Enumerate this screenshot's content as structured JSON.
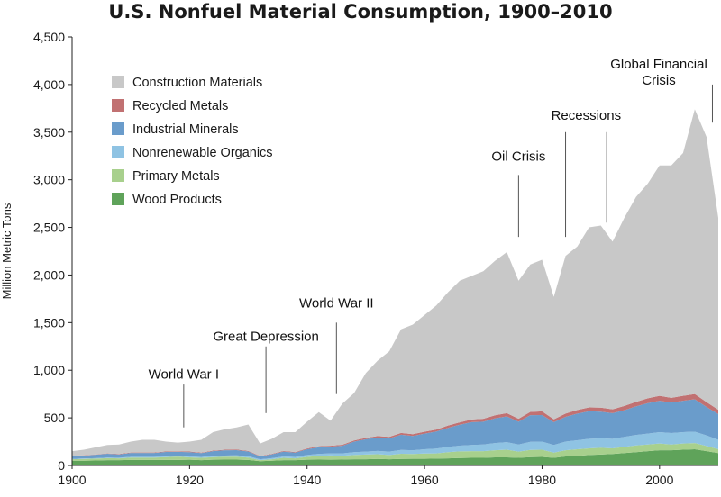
{
  "chart_data": {
    "type": "area",
    "stacked": true,
    "title": "U.S. Nonfuel Material Consumption, 1900–2010",
    "xlabel": "",
    "ylabel": "Million Metric Tons",
    "xlim": [
      1900,
      2010
    ],
    "ylim": [
      0,
      4500
    ],
    "x_ticks": [
      1900,
      1920,
      1940,
      1960,
      1980,
      2000
    ],
    "y_ticks": [
      0,
      500,
      1000,
      1500,
      2000,
      2500,
      3000,
      3500,
      4000,
      4500
    ],
    "y_tick_labels": [
      "0",
      "500",
      "1,000",
      "1,500",
      "2,000",
      "2,500",
      "3,000",
      "3,500",
      "4,000",
      "4,500"
    ],
    "grid": false,
    "legend_position": "top-left",
    "x": [
      1900,
      1902,
      1904,
      1906,
      1908,
      1910,
      1912,
      1914,
      1916,
      1918,
      1920,
      1922,
      1924,
      1926,
      1928,
      1930,
      1932,
      1934,
      1936,
      1938,
      1940,
      1942,
      1944,
      1946,
      1948,
      1950,
      1952,
      1954,
      1956,
      1958,
      1960,
      1962,
      1964,
      1966,
      1968,
      1970,
      1972,
      1974,
      1976,
      1978,
      1980,
      1982,
      1984,
      1986,
      1988,
      1990,
      1992,
      1994,
      1996,
      1998,
      2000,
      2002,
      2004,
      2006,
      2008,
      2010
    ],
    "series": [
      {
        "name": "Wood Products",
        "color": "#5fa35a",
        "values": [
          50,
          50,
          52,
          55,
          55,
          58,
          58,
          58,
          58,
          58,
          60,
          55,
          60,
          62,
          62,
          58,
          45,
          50,
          55,
          55,
          60,
          62,
          60,
          62,
          65,
          65,
          68,
          65,
          68,
          70,
          70,
          72,
          75,
          78,
          80,
          80,
          85,
          85,
          80,
          88,
          90,
          80,
          95,
          100,
          110,
          115,
          120,
          130,
          140,
          150,
          160,
          160,
          165,
          170,
          150,
          130
        ]
      },
      {
        "name": "Primary Metals",
        "color": "#a8d08d",
        "values": [
          15,
          18,
          20,
          22,
          20,
          25,
          25,
          25,
          30,
          35,
          25,
          25,
          28,
          30,
          30,
          25,
          10,
          15,
          25,
          20,
          30,
          40,
          45,
          40,
          45,
          50,
          50,
          45,
          55,
          50,
          55,
          55,
          65,
          70,
          70,
          70,
          75,
          80,
          65,
          75,
          75,
          55,
          65,
          70,
          70,
          70,
          60,
          65,
          70,
          70,
          70,
          60,
          65,
          65,
          55,
          40
        ]
      },
      {
        "name": "Nonrenewable Organics",
        "color": "#8fc3e3",
        "values": [
          5,
          5,
          5,
          6,
          6,
          8,
          8,
          8,
          9,
          10,
          10,
          10,
          12,
          12,
          14,
          14,
          10,
          12,
          15,
          15,
          20,
          20,
          22,
          25,
          30,
          30,
          35,
          35,
          40,
          40,
          45,
          50,
          55,
          60,
          65,
          70,
          75,
          80,
          75,
          85,
          85,
          80,
          90,
          95,
          100,
          100,
          100,
          105,
          110,
          115,
          120,
          120,
          120,
          120,
          110,
          100
        ]
      },
      {
        "name": "Industrial Minerals",
        "color": "#6a9ccb",
        "values": [
          30,
          30,
          35,
          40,
          35,
          40,
          40,
          40,
          45,
          40,
          45,
          40,
          50,
          55,
          55,
          50,
          30,
          40,
          50,
          45,
          60,
          70,
          70,
          80,
          110,
          130,
          140,
          140,
          160,
          150,
          165,
          180,
          200,
          220,
          240,
          240,
          260,
          270,
          240,
          280,
          280,
          240,
          260,
          280,
          290,
          280,
          270,
          280,
          300,
          320,
          330,
          320,
          330,
          340,
          300,
          270
        ]
      },
      {
        "name": "Recycled Metals",
        "color": "#c17172",
        "values": [
          3,
          3,
          3,
          4,
          4,
          5,
          5,
          5,
          6,
          6,
          6,
          5,
          6,
          6,
          7,
          6,
          4,
          5,
          7,
          6,
          8,
          10,
          10,
          10,
          12,
          15,
          15,
          15,
          18,
          18,
          20,
          20,
          25,
          25,
          28,
          30,
          32,
          35,
          30,
          35,
          38,
          30,
          35,
          38,
          40,
          42,
          40,
          45,
          48,
          50,
          52,
          50,
          52,
          55,
          50,
          45
        ]
      },
      {
        "name": "Construction Materials",
        "color": "#c8c8c8",
        "values": [
          47,
          60,
          75,
          88,
          100,
          114,
          134,
          134,
          102,
          91,
          104,
          135,
          194,
          215,
          232,
          277,
          131,
          158,
          198,
          209,
          282,
          358,
          263,
          433,
          498,
          680,
          792,
          900,
          1089,
          1152,
          1225,
          1303,
          1400,
          1487,
          1507,
          1550,
          1623,
          1690,
          1450,
          1547,
          1592,
          1285,
          1655,
          1717,
          1890,
          1913,
          1760,
          1975,
          2152,
          2255,
          2418,
          2440,
          2548,
          2990,
          2785,
          2015
        ]
      }
    ],
    "annotations": [
      {
        "text": "World War I",
        "x": 1919,
        "y_top": 850,
        "y_bottom": 400
      },
      {
        "text": "Great Depression",
        "x": 1933,
        "y_top": 1250,
        "y_bottom": 550
      },
      {
        "text": "World War II",
        "x": 1945,
        "y_top": 1500,
        "y_bottom": 750
      },
      {
        "text": "Oil Crisis",
        "x": 1976,
        "y_top": 3050,
        "y_bottom": 2400
      },
      {
        "text": "Recessions",
        "x": 1984,
        "y_top": 3500,
        "y_bottom": 2400
      },
      {
        "text": "Recessions",
        "x": 1991,
        "y_top": 3500,
        "y_bottom": 2550
      },
      {
        "text": "Global Financial Crisis",
        "x": 2009,
        "y_top": 4000,
        "y_bottom": 3600
      }
    ]
  }
}
